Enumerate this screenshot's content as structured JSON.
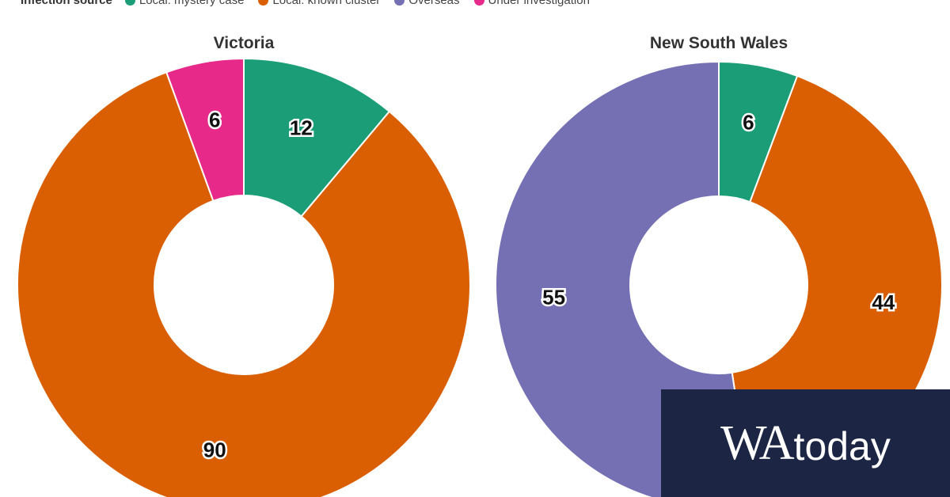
{
  "legend": {
    "title": "Infection source",
    "entries": [
      {
        "label": "Local: mystery case",
        "color": "#1b9e77"
      },
      {
        "label": "Local: known cluster",
        "color": "#d95f02"
      },
      {
        "label": "Overseas",
        "color": "#7570b3"
      },
      {
        "label": "Under investigation",
        "color": "#e7298a"
      }
    ]
  },
  "chart_data": [
    {
      "type": "pie",
      "variant": "donut",
      "title": "Victoria",
      "categories": [
        "Local: mystery case",
        "Local: known cluster",
        "Overseas",
        "Under investigation"
      ],
      "values": [
        12,
        90,
        0,
        6
      ],
      "colors": [
        "#1b9e77",
        "#d95f02",
        "#7570b3",
        "#e7298a"
      ]
    },
    {
      "type": "pie",
      "variant": "donut",
      "title": "New South Wales",
      "categories": [
        "Local: mystery case",
        "Local: known cluster",
        "Overseas",
        "Under investigation"
      ],
      "values": [
        6,
        44,
        55,
        0
      ],
      "colors": [
        "#1b9e77",
        "#d95f02",
        "#7570b3",
        "#e7298a"
      ]
    }
  ],
  "brand": {
    "logo_wa": "WA",
    "logo_today": "today"
  }
}
